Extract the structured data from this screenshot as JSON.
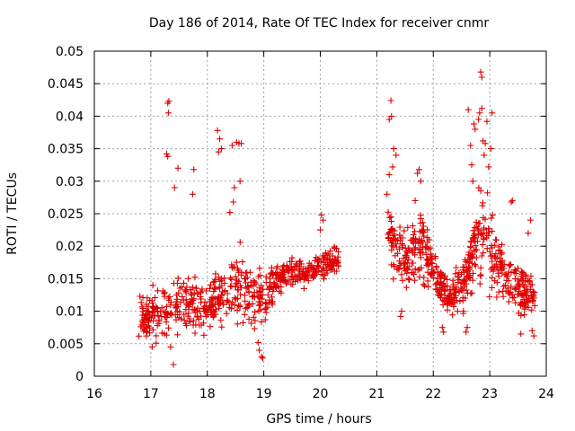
{
  "chart_data": {
    "type": "scatter",
    "title": "Day 186 of 2014, Rate Of TEC Index for receiver cnmr",
    "xlabel": "GPS time / hours",
    "ylabel": "ROTI / TECUs",
    "xlim": [
      16,
      24
    ],
    "ylim": [
      0,
      0.05
    ],
    "x_ticks": [
      "16",
      "17",
      "18",
      "19",
      "20",
      "21",
      "22",
      "23",
      "24"
    ],
    "y_ticks": [
      "0",
      "0.005",
      "0.01",
      "0.015",
      "0.02",
      "0.025",
      "0.03",
      "0.035",
      "0.04",
      "0.045",
      "0.05"
    ],
    "grid": true,
    "marker": "+",
    "color": "#e00000",
    "series": [
      {
        "name": "ROTI",
        "clusters": [
          {
            "x_range": [
              16.78,
              20.32
            ],
            "count": 620,
            "seed": 11,
            "profile": [
              [
                16.8,
                0.0085,
                0.0045
              ],
              [
                17.0,
                0.009,
                0.005
              ],
              [
                17.3,
                0.01,
                0.006
              ],
              [
                17.5,
                0.011,
                0.006
              ],
              [
                17.8,
                0.011,
                0.006
              ],
              [
                18.0,
                0.01,
                0.005
              ],
              [
                18.3,
                0.013,
                0.007
              ],
              [
                18.6,
                0.014,
                0.008
              ],
              [
                18.8,
                0.012,
                0.006
              ],
              [
                19.0,
                0.012,
                0.005
              ],
              [
                19.4,
                0.016,
                0.003
              ],
              [
                19.8,
                0.016,
                0.003
              ],
              [
                20.3,
                0.018,
                0.003
              ]
            ]
          },
          {
            "x_range": [
              21.18,
              23.8
            ],
            "count": 560,
            "seed": 29,
            "profile": [
              [
                21.2,
                0.022,
                0.008
              ],
              [
                21.5,
                0.018,
                0.007
              ],
              [
                21.8,
                0.02,
                0.007
              ],
              [
                22.0,
                0.016,
                0.004
              ],
              [
                22.3,
                0.012,
                0.004
              ],
              [
                22.6,
                0.015,
                0.006
              ],
              [
                22.8,
                0.022,
                0.01
              ],
              [
                23.0,
                0.02,
                0.008
              ],
              [
                23.3,
                0.015,
                0.005
              ],
              [
                23.6,
                0.013,
                0.005
              ],
              [
                23.8,
                0.012,
                0.005
              ]
            ]
          }
        ],
        "points": [
          [
            17.3,
            0.042
          ],
          [
            17.32,
            0.0423
          ],
          [
            17.31,
            0.0405
          ],
          [
            17.28,
            0.0342
          ],
          [
            17.3,
            0.0338
          ],
          [
            17.4,
            0.0018
          ],
          [
            17.35,
            0.0045
          ],
          [
            17.42,
            0.029
          ],
          [
            17.48,
            0.032
          ],
          [
            17.76,
            0.0318
          ],
          [
            17.74,
            0.028
          ],
          [
            18.18,
            0.0378
          ],
          [
            18.22,
            0.0365
          ],
          [
            18.25,
            0.035
          ],
          [
            18.2,
            0.0345
          ],
          [
            18.44,
            0.0355
          ],
          [
            18.52,
            0.036
          ],
          [
            18.56,
            0.0358
          ],
          [
            18.6,
            0.0358
          ],
          [
            18.58,
            0.03
          ],
          [
            18.46,
            0.0268
          ],
          [
            18.4,
            0.0252
          ],
          [
            18.48,
            0.029
          ],
          [
            18.92,
            0.004
          ],
          [
            18.96,
            0.003
          ],
          [
            18.98,
            0.0028
          ],
          [
            18.9,
            0.0052
          ],
          [
            20.02,
            0.0248
          ],
          [
            20.0,
            0.0225
          ],
          [
            20.05,
            0.024
          ],
          [
            21.25,
            0.0424
          ],
          [
            21.22,
            0.0395
          ],
          [
            21.26,
            0.04
          ],
          [
            21.3,
            0.035
          ],
          [
            21.34,
            0.034
          ],
          [
            21.28,
            0.0322
          ],
          [
            21.22,
            0.031
          ],
          [
            21.18,
            0.028
          ],
          [
            21.25,
            0.0245
          ],
          [
            21.42,
            0.0092
          ],
          [
            21.44,
            0.01
          ],
          [
            21.75,
            0.0318
          ],
          [
            21.72,
            0.0312
          ],
          [
            21.68,
            0.027
          ],
          [
            21.78,
            0.03
          ],
          [
            22.18,
            0.0068
          ],
          [
            22.16,
            0.0075
          ],
          [
            22.58,
            0.0068
          ],
          [
            22.6,
            0.0075
          ],
          [
            22.66,
            0.0355
          ],
          [
            22.68,
            0.0325
          ],
          [
            22.7,
            0.03
          ],
          [
            22.62,
            0.041
          ],
          [
            22.72,
            0.0388
          ],
          [
            22.74,
            0.038
          ],
          [
            22.8,
            0.0395
          ],
          [
            22.82,
            0.0405
          ],
          [
            22.86,
            0.0412
          ],
          [
            22.84,
            0.0468
          ],
          [
            22.86,
            0.046
          ],
          [
            22.88,
            0.0362
          ],
          [
            22.9,
            0.034
          ],
          [
            22.92,
            0.0358
          ],
          [
            22.95,
            0.0392
          ],
          [
            23.02,
            0.035
          ],
          [
            23.04,
            0.0405
          ],
          [
            22.98,
            0.0322
          ],
          [
            23.05,
            0.0248
          ],
          [
            22.96,
            0.0282
          ],
          [
            23.38,
            0.0268
          ],
          [
            23.4,
            0.027
          ],
          [
            23.55,
            0.0065
          ],
          [
            23.75,
            0.007
          ],
          [
            23.78,
            0.0062
          ],
          [
            23.72,
            0.024
          ],
          [
            23.68,
            0.022
          ]
        ]
      }
    ]
  }
}
